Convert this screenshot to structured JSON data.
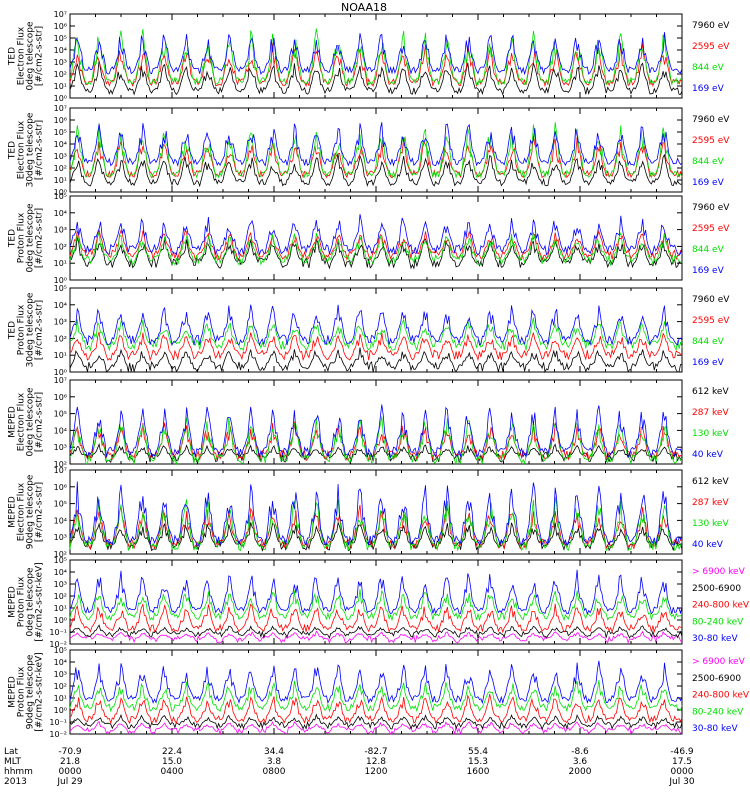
{
  "title": "NOAA18",
  "colors": {
    "black": "#000000",
    "blue": "#0000ff",
    "green": "#00e000",
    "red": "#ff0000",
    "magenta": "#ff00ff"
  },
  "chart_data": [
    {
      "type": "line",
      "instrument": "TED",
      "ylabel_lines": [
        "TED",
        "Electron Flux",
        "0deg telescope",
        "[#/cm2-s-str]"
      ],
      "ylim": [
        1,
        10000000
      ],
      "yscale": "log",
      "ytick_exps": [
        0,
        1,
        2,
        3,
        4,
        5,
        6,
        7
      ],
      "series": [
        {
          "name": "7960 eV",
          "color": "black",
          "base": 0.6,
          "peak": 3.2
        },
        {
          "name": "2595 eV",
          "color": "red",
          "base": 1.3,
          "peak": 4.8
        },
        {
          "name": "844 eV",
          "color": "green",
          "base": 1.4,
          "peak": 6.0
        },
        {
          "name": "169 eV",
          "color": "blue",
          "base": 2.3,
          "peak": 5.8
        }
      ]
    },
    {
      "type": "line",
      "instrument": "TED",
      "ylabel_lines": [
        "TED",
        "Electron Flux",
        "30deg telescope",
        "[#/cm2-s-str]"
      ],
      "ylim": [
        1,
        10000000
      ],
      "yscale": "log",
      "ytick_exps": [
        0,
        1,
        2,
        3,
        4,
        5,
        6,
        7
      ],
      "series": [
        {
          "name": "7960 eV",
          "color": "black",
          "base": 0.8,
          "peak": 3.3
        },
        {
          "name": "2595 eV",
          "color": "red",
          "base": 1.5,
          "peak": 4.8
        },
        {
          "name": "844 eV",
          "color": "green",
          "base": 1.5,
          "peak": 5.9
        },
        {
          "name": "169 eV",
          "color": "blue",
          "base": 2.5,
          "peak": 6.0
        }
      ]
    },
    {
      "type": "line",
      "instrument": "TED",
      "ylabel_lines": [
        "TED",
        "Proton Flux",
        "0deg telescope",
        "[#/cm2-s-str]"
      ],
      "ylim": [
        1,
        100000
      ],
      "yscale": "log",
      "ytick_exps": [
        0,
        1,
        2,
        3,
        4,
        5
      ],
      "series": [
        {
          "name": "7960 eV",
          "color": "black",
          "base": 1.0,
          "peak": 2.6
        },
        {
          "name": "2595 eV",
          "color": "red",
          "base": 1.5,
          "peak": 3.1
        },
        {
          "name": "844 eV",
          "color": "green",
          "base": 1.2,
          "peak": 2.9
        },
        {
          "name": "169 eV",
          "color": "blue",
          "base": 1.8,
          "peak": 4.0
        }
      ]
    },
    {
      "type": "line",
      "instrument": "TED",
      "ylabel_lines": [
        "TED",
        "Proton Flux",
        "30deg telescope",
        "[#/cm2-s-str]"
      ],
      "ylim": [
        1,
        100000
      ],
      "yscale": "log",
      "ytick_exps": [
        0,
        1,
        2,
        3,
        4,
        5
      ],
      "series": [
        {
          "name": "7960 eV",
          "color": "black",
          "base": 0.3,
          "peak": 1.5
        },
        {
          "name": "2595 eV",
          "color": "red",
          "base": 1.0,
          "peak": 2.5
        },
        {
          "name": "844 eV",
          "color": "green",
          "base": 1.6,
          "peak": 3.3
        },
        {
          "name": "169 eV",
          "color": "blue",
          "base": 1.9,
          "peak": 4.2
        }
      ]
    },
    {
      "type": "line",
      "instrument": "MEPED",
      "ylabel_lines": [
        "MEPED",
        "Electron Flux",
        "0deg telescope",
        "[#/cm2-s-str]"
      ],
      "ylim": [
        100,
        10000000
      ],
      "yscale": "log",
      "ytick_exps": [
        2,
        3,
        4,
        5,
        6,
        7
      ],
      "series": [
        {
          "name": "612 keV",
          "color": "black",
          "base": 2.4,
          "peak": 3.2
        },
        {
          "name": "287 keV",
          "color": "red",
          "base": 2.5,
          "peak": 4.6
        },
        {
          "name": "130 keV",
          "color": "green",
          "base": 2.3,
          "peak": 5.0
        },
        {
          "name": "40 keV",
          "color": "blue",
          "base": 2.7,
          "peak": 5.7
        }
      ]
    },
    {
      "type": "line",
      "instrument": "MEPED",
      "ylabel_lines": [
        "MEPED",
        "Electron Flux",
        "90deg telescope",
        "[#/cm2-s-str]"
      ],
      "ylim": [
        100,
        10000000
      ],
      "yscale": "log",
      "ytick_exps": [
        2,
        3,
        4,
        5,
        6,
        7
      ],
      "series": [
        {
          "name": "612 keV",
          "color": "black",
          "base": 2.5,
          "peak": 4.0
        },
        {
          "name": "287 keV",
          "color": "red",
          "base": 2.6,
          "peak": 5.0
        },
        {
          "name": "130 keV",
          "color": "green",
          "base": 2.5,
          "peak": 5.5
        },
        {
          "name": "40 keV",
          "color": "blue",
          "base": 2.8,
          "peak": 6.5
        }
      ]
    },
    {
      "type": "line",
      "instrument": "MEPED",
      "ylabel_lines": [
        "MEPED",
        "Proton Flux",
        "0deg telescope",
        "[#/cm2-s-str-keV]"
      ],
      "ylim": [
        0.01,
        100000
      ],
      "yscale": "log",
      "ytick_exps": [
        -2,
        -1,
        0,
        1,
        2,
        3,
        4,
        5
      ],
      "series": [
        {
          "name": "> 6900 keV",
          "color": "magenta",
          "base": -1.6,
          "peak": -0.9
        },
        {
          "name": "2500-6900",
          "color": "black",
          "base": -1.2,
          "peak": -0.4
        },
        {
          "name": "240-800 keV",
          "color": "red",
          "base": -0.7,
          "peak": 1.5
        },
        {
          "name": "80-240 keV",
          "color": "green",
          "base": 0.3,
          "peak": 2.8
        },
        {
          "name": "30-80 keV",
          "color": "blue",
          "base": 0.8,
          "peak": 4.3
        }
      ]
    },
    {
      "type": "line",
      "instrument": "MEPED",
      "ylabel_lines": [
        "MEPED",
        "Proton Flux",
        "90deg telescope",
        "[#/cm2-s-str-keV]"
      ],
      "ylim": [
        0.01,
        100000
      ],
      "yscale": "log",
      "ytick_exps": [
        -2,
        -1,
        0,
        1,
        2,
        3,
        4,
        5
      ],
      "series": [
        {
          "name": "> 6900 keV",
          "color": "magenta",
          "base": -1.7,
          "peak": -0.9
        },
        {
          "name": "2500-6900",
          "color": "black",
          "base": -1.3,
          "peak": -0.3
        },
        {
          "name": "240-800 keV",
          "color": "red",
          "base": -0.8,
          "peak": 1.5
        },
        {
          "name": "80-240 keV",
          "color": "green",
          "base": 0.2,
          "peak": 2.6
        },
        {
          "name": "30-80 keV",
          "color": "blue",
          "base": 0.9,
          "peak": 4.3
        }
      ]
    }
  ],
  "footer": {
    "row_labels": [
      "Lat",
      "MLT",
      "hhmm",
      "2013"
    ],
    "columns": [
      {
        "Lat": "-70.9",
        "MLT": "21.8",
        "hhmm": "0000",
        "date": "Jul 29"
      },
      {
        "Lat": "22.4",
        "MLT": "15.0",
        "hhmm": "0400",
        "date": ""
      },
      {
        "Lat": "34.4",
        "MLT": "3.8",
        "hhmm": "0800",
        "date": ""
      },
      {
        "Lat": "-82.7",
        "MLT": "12.8",
        "hhmm": "1200",
        "date": ""
      },
      {
        "Lat": "55.4",
        "MLT": "15.3",
        "hhmm": "1600",
        "date": ""
      },
      {
        "Lat": "-8.6",
        "MLT": "3.6",
        "hhmm": "2000",
        "date": ""
      },
      {
        "Lat": "-46.9",
        "MLT": "17.5",
        "hhmm": "0000",
        "date": "Jul 30"
      }
    ]
  }
}
